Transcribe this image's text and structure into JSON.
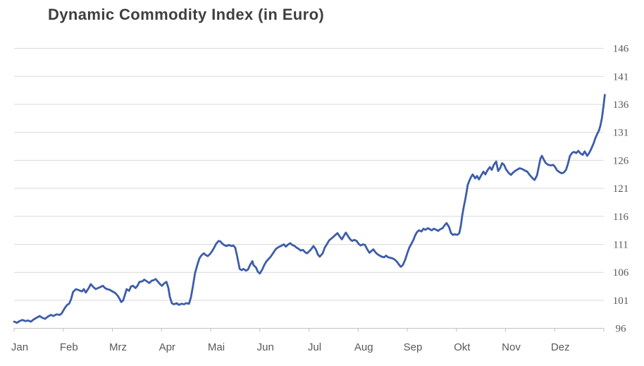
{
  "title": "Dynamic Commodity Index (in Euro)",
  "colors": {
    "line": "#3D5DA9",
    "gridline": "#D9D9D9",
    "axis": "#BFBFBF",
    "title_text": "#3F3F3F",
    "label_text": "#595959",
    "background": "#FFFFFF"
  },
  "chart_data": {
    "type": "line",
    "title": "Dynamic Commodity Index (in Euro)",
    "xlabel": "",
    "ylabel": "",
    "legend": "none",
    "grid": "horizontal",
    "x_categories": [
      "Jan",
      "Feb",
      "Mrz",
      "Apr",
      "Mai",
      "Jun",
      "Jul",
      "Aug",
      "Sep",
      "Okt",
      "Nov",
      "Dez"
    ],
    "x_unit": "month (0 = start of Jan, 12 = end of Dez)",
    "xlim": [
      0,
      12
    ],
    "y_ticks": [
      96,
      101,
      106,
      111,
      116,
      121,
      126,
      131,
      136,
      141,
      146
    ],
    "ylim": [
      96,
      146
    ],
    "series": [
      {
        "name": "Dynamic Commodity Index (EUR)",
        "points": [
          [
            0.0,
            97.2
          ],
          [
            0.06,
            97.0
          ],
          [
            0.11,
            97.3
          ],
          [
            0.17,
            97.5
          ],
          [
            0.23,
            97.3
          ],
          [
            0.29,
            97.4
          ],
          [
            0.34,
            97.2
          ],
          [
            0.4,
            97.6
          ],
          [
            0.46,
            97.9
          ],
          [
            0.52,
            98.2
          ],
          [
            0.57,
            97.9
          ],
          [
            0.63,
            97.7
          ],
          [
            0.69,
            98.1
          ],
          [
            0.75,
            98.4
          ],
          [
            0.8,
            98.2
          ],
          [
            0.86,
            98.5
          ],
          [
            0.93,
            98.4
          ],
          [
            0.97,
            98.7
          ],
          [
            1.03,
            99.6
          ],
          [
            1.08,
            100.2
          ],
          [
            1.12,
            100.4
          ],
          [
            1.16,
            101.2
          ],
          [
            1.2,
            102.5
          ],
          [
            1.26,
            103.0
          ],
          [
            1.32,
            102.8
          ],
          [
            1.38,
            102.6
          ],
          [
            1.42,
            103.0
          ],
          [
            1.46,
            102.4
          ],
          [
            1.52,
            103.2
          ],
          [
            1.56,
            103.9
          ],
          [
            1.61,
            103.4
          ],
          [
            1.66,
            103.0
          ],
          [
            1.71,
            103.2
          ],
          [
            1.76,
            103.4
          ],
          [
            1.81,
            103.6
          ],
          [
            1.85,
            103.2
          ],
          [
            1.89,
            103.0
          ],
          [
            1.94,
            102.9
          ],
          [
            1.98,
            102.7
          ],
          [
            2.02,
            102.5
          ],
          [
            2.06,
            102.3
          ],
          [
            2.11,
            101.8
          ],
          [
            2.15,
            101.2
          ],
          [
            2.18,
            100.7
          ],
          [
            2.22,
            101.0
          ],
          [
            2.27,
            102.4
          ],
          [
            2.29,
            103.0
          ],
          [
            2.34,
            102.7
          ],
          [
            2.38,
            103.5
          ],
          [
            2.42,
            103.6
          ],
          [
            2.47,
            103.2
          ],
          [
            2.51,
            103.6
          ],
          [
            2.55,
            104.3
          ],
          [
            2.61,
            104.4
          ],
          [
            2.65,
            104.7
          ],
          [
            2.7,
            104.4
          ],
          [
            2.75,
            104.1
          ],
          [
            2.8,
            104.5
          ],
          [
            2.84,
            104.6
          ],
          [
            2.88,
            104.8
          ],
          [
            2.92,
            104.4
          ],
          [
            2.97,
            103.9
          ],
          [
            3.01,
            103.6
          ],
          [
            3.05,
            104.0
          ],
          [
            3.1,
            104.3
          ],
          [
            3.14,
            103.2
          ],
          [
            3.17,
            101.6
          ],
          [
            3.21,
            100.5
          ],
          [
            3.25,
            100.3
          ],
          [
            3.31,
            100.5
          ],
          [
            3.35,
            100.2
          ],
          [
            3.41,
            100.4
          ],
          [
            3.46,
            100.3
          ],
          [
            3.5,
            100.5
          ],
          [
            3.56,
            100.4
          ],
          [
            3.6,
            101.6
          ],
          [
            3.64,
            103.6
          ],
          [
            3.68,
            105.8
          ],
          [
            3.73,
            107.4
          ],
          [
            3.77,
            108.5
          ],
          [
            3.81,
            109.0
          ],
          [
            3.86,
            109.4
          ],
          [
            3.9,
            109.1
          ],
          [
            3.94,
            108.9
          ],
          [
            3.99,
            109.3
          ],
          [
            4.03,
            109.8
          ],
          [
            4.07,
            110.4
          ],
          [
            4.11,
            111.1
          ],
          [
            4.16,
            111.6
          ],
          [
            4.2,
            111.5
          ],
          [
            4.24,
            111.1
          ],
          [
            4.29,
            110.8
          ],
          [
            4.33,
            110.7
          ],
          [
            4.37,
            110.9
          ],
          [
            4.42,
            110.7
          ],
          [
            4.46,
            110.8
          ],
          [
            4.5,
            110.4
          ],
          [
            4.54,
            108.8
          ],
          [
            4.59,
            106.6
          ],
          [
            4.63,
            106.4
          ],
          [
            4.67,
            106.6
          ],
          [
            4.72,
            106.3
          ],
          [
            4.76,
            106.5
          ],
          [
            4.8,
            107.3
          ],
          [
            4.85,
            108.0
          ],
          [
            4.87,
            107.3
          ],
          [
            4.92,
            106.9
          ],
          [
            4.96,
            106.1
          ],
          [
            5.0,
            105.8
          ],
          [
            5.05,
            106.5
          ],
          [
            5.09,
            107.3
          ],
          [
            5.13,
            107.9
          ],
          [
            5.18,
            108.4
          ],
          [
            5.22,
            108.8
          ],
          [
            5.26,
            109.3
          ],
          [
            5.32,
            110.1
          ],
          [
            5.36,
            110.4
          ],
          [
            5.4,
            110.6
          ],
          [
            5.45,
            110.8
          ],
          [
            5.49,
            111.0
          ],
          [
            5.53,
            110.6
          ],
          [
            5.58,
            111.0
          ],
          [
            5.62,
            111.2
          ],
          [
            5.66,
            110.9
          ],
          [
            5.71,
            110.7
          ],
          [
            5.75,
            110.4
          ],
          [
            5.79,
            110.2
          ],
          [
            5.83,
            109.9
          ],
          [
            5.88,
            110.0
          ],
          [
            5.92,
            109.6
          ],
          [
            5.96,
            109.4
          ],
          [
            6.01,
            109.8
          ],
          [
            6.05,
            110.2
          ],
          [
            6.09,
            110.7
          ],
          [
            6.14,
            110.1
          ],
          [
            6.18,
            109.2
          ],
          [
            6.22,
            108.8
          ],
          [
            6.28,
            109.4
          ],
          [
            6.32,
            110.4
          ],
          [
            6.37,
            111.1
          ],
          [
            6.41,
            111.7
          ],
          [
            6.45,
            112.0
          ],
          [
            6.49,
            112.3
          ],
          [
            6.54,
            112.7
          ],
          [
            6.58,
            113.0
          ],
          [
            6.62,
            112.5
          ],
          [
            6.67,
            111.9
          ],
          [
            6.71,
            112.5
          ],
          [
            6.75,
            113.1
          ],
          [
            6.8,
            112.4
          ],
          [
            6.84,
            111.9
          ],
          [
            6.88,
            111.6
          ],
          [
            6.92,
            111.8
          ],
          [
            6.97,
            111.6
          ],
          [
            7.01,
            111.1
          ],
          [
            7.05,
            110.8
          ],
          [
            7.1,
            111.0
          ],
          [
            7.14,
            110.9
          ],
          [
            7.18,
            110.2
          ],
          [
            7.23,
            109.5
          ],
          [
            7.27,
            109.8
          ],
          [
            7.31,
            110.1
          ],
          [
            7.35,
            109.6
          ],
          [
            7.4,
            109.2
          ],
          [
            7.44,
            109.0
          ],
          [
            7.48,
            108.8
          ],
          [
            7.53,
            108.7
          ],
          [
            7.57,
            109.0
          ],
          [
            7.61,
            108.7
          ],
          [
            7.66,
            108.6
          ],
          [
            7.7,
            108.5
          ],
          [
            7.74,
            108.3
          ],
          [
            7.79,
            107.9
          ],
          [
            7.83,
            107.4
          ],
          [
            7.87,
            107.0
          ],
          [
            7.91,
            107.3
          ],
          [
            7.96,
            108.3
          ],
          [
            8.0,
            109.4
          ],
          [
            8.04,
            110.4
          ],
          [
            8.09,
            111.2
          ],
          [
            8.13,
            111.9
          ],
          [
            8.16,
            112.6
          ],
          [
            8.2,
            113.2
          ],
          [
            8.24,
            113.5
          ],
          [
            8.29,
            113.3
          ],
          [
            8.33,
            113.8
          ],
          [
            8.37,
            113.6
          ],
          [
            8.42,
            113.9
          ],
          [
            8.46,
            113.7
          ],
          [
            8.5,
            113.5
          ],
          [
            8.54,
            113.8
          ],
          [
            8.59,
            113.6
          ],
          [
            8.63,
            113.4
          ],
          [
            8.67,
            113.7
          ],
          [
            8.72,
            113.9
          ],
          [
            8.76,
            114.4
          ],
          [
            8.8,
            114.8
          ],
          [
            8.85,
            114.1
          ],
          [
            8.89,
            113.0
          ],
          [
            8.93,
            112.7
          ],
          [
            8.97,
            112.8
          ],
          [
            9.02,
            112.7
          ],
          [
            9.06,
            113.0
          ],
          [
            9.09,
            114.3
          ],
          [
            9.12,
            116.2
          ],
          [
            9.15,
            117.7
          ],
          [
            9.18,
            119.0
          ],
          [
            9.21,
            120.5
          ],
          [
            9.23,
            121.6
          ],
          [
            9.26,
            122.3
          ],
          [
            9.29,
            122.9
          ],
          [
            9.33,
            123.5
          ],
          [
            9.38,
            122.8
          ],
          [
            9.42,
            123.2
          ],
          [
            9.46,
            122.6
          ],
          [
            9.51,
            123.4
          ],
          [
            9.55,
            124.0
          ],
          [
            9.59,
            123.5
          ],
          [
            9.63,
            124.2
          ],
          [
            9.68,
            124.8
          ],
          [
            9.72,
            124.3
          ],
          [
            9.76,
            125.2
          ],
          [
            9.81,
            125.8
          ],
          [
            9.85,
            124.1
          ],
          [
            9.89,
            124.6
          ],
          [
            9.93,
            125.5
          ],
          [
            9.97,
            125.2
          ],
          [
            10.01,
            124.4
          ],
          [
            10.06,
            123.8
          ],
          [
            10.11,
            123.4
          ],
          [
            10.15,
            123.8
          ],
          [
            10.21,
            124.2
          ],
          [
            10.25,
            124.4
          ],
          [
            10.29,
            124.6
          ],
          [
            10.35,
            124.4
          ],
          [
            10.39,
            124.2
          ],
          [
            10.44,
            124.0
          ],
          [
            10.49,
            123.4
          ],
          [
            10.55,
            122.8
          ],
          [
            10.59,
            122.5
          ],
          [
            10.64,
            123.3
          ],
          [
            10.68,
            125.0
          ],
          [
            10.71,
            126.3
          ],
          [
            10.74,
            126.8
          ],
          [
            10.78,
            126.1
          ],
          [
            10.82,
            125.5
          ],
          [
            10.87,
            125.2
          ],
          [
            10.92,
            125.1
          ],
          [
            10.97,
            125.2
          ],
          [
            11.01,
            124.8
          ],
          [
            11.05,
            124.2
          ],
          [
            11.1,
            123.9
          ],
          [
            11.14,
            123.7
          ],
          [
            11.18,
            123.8
          ],
          [
            11.23,
            124.3
          ],
          [
            11.27,
            125.4
          ],
          [
            11.31,
            126.8
          ],
          [
            11.36,
            127.4
          ],
          [
            11.4,
            127.5
          ],
          [
            11.44,
            127.3
          ],
          [
            11.48,
            127.7
          ],
          [
            11.53,
            127.2
          ],
          [
            11.57,
            127.0
          ],
          [
            11.61,
            127.6
          ],
          [
            11.66,
            126.8
          ],
          [
            11.7,
            127.3
          ],
          [
            11.74,
            128.0
          ],
          [
            11.79,
            129.0
          ],
          [
            11.83,
            130.0
          ],
          [
            11.87,
            130.8
          ],
          [
            11.9,
            131.3
          ],
          [
            11.93,
            132.2
          ],
          [
            11.96,
            133.5
          ],
          [
            11.98,
            134.8
          ],
          [
            12.0,
            136.2
          ],
          [
            12.02,
            137.7
          ]
        ]
      }
    ]
  }
}
